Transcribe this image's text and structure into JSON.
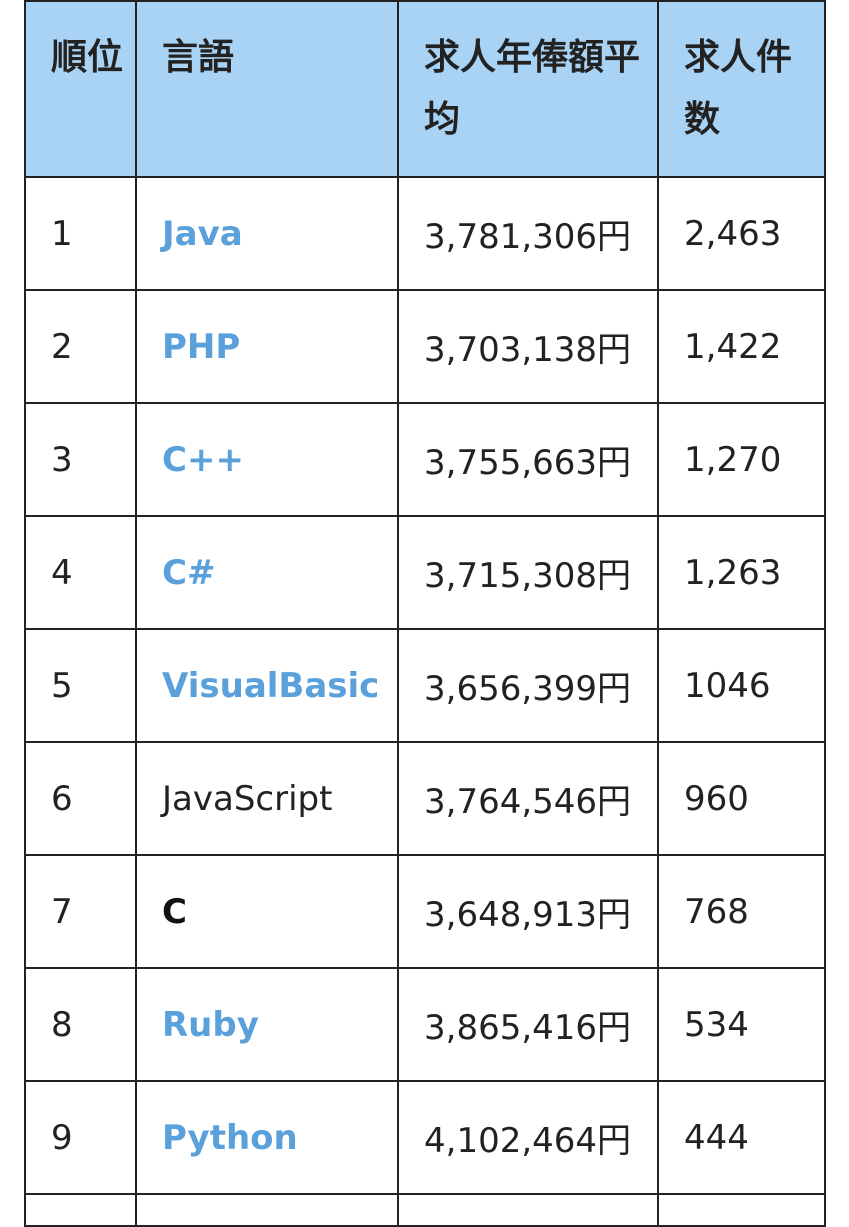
{
  "headers": {
    "rank": "順位",
    "language": "言語",
    "salary": "求人年俸額平均",
    "count": "求人件数"
  },
  "colors": {
    "header_bg": "#a9d3f5",
    "link": "#5aa1dc",
    "border": "#222222"
  },
  "rows": [
    {
      "rank": "1",
      "language": "Java",
      "salary": "3,781,306円",
      "count": "2,463",
      "style": "link"
    },
    {
      "rank": "2",
      "language": "PHP",
      "salary": "3,703,138円",
      "count": "1,422",
      "style": "link"
    },
    {
      "rank": "3",
      "language": "C++",
      "salary": "3,755,663円",
      "count": "1,270",
      "style": "link"
    },
    {
      "rank": "4",
      "language": "C#",
      "salary": "3,715,308円",
      "count": "1,263",
      "style": "link"
    },
    {
      "rank": "5",
      "language": "VisualBasic",
      "salary": "3,656,399円",
      "count": "1046",
      "style": "link"
    },
    {
      "rank": "6",
      "language": "JavaScript",
      "salary": "3,764,546円",
      "count": "960",
      "style": "plain"
    },
    {
      "rank": "7",
      "language": "C",
      "salary": "3,648,913円",
      "count": "768",
      "style": "bold"
    },
    {
      "rank": "8",
      "language": "Ruby",
      "salary": "3,865,416円",
      "count": "534",
      "style": "link"
    },
    {
      "rank": "9",
      "language": "Python",
      "salary": "4,102,464円",
      "count": "444",
      "style": "link"
    }
  ]
}
